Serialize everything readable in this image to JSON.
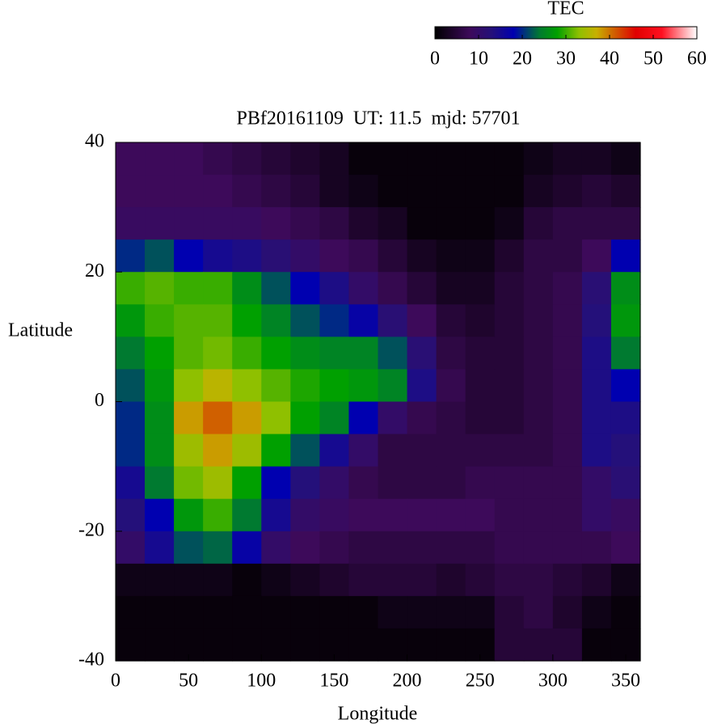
{
  "chart_data": {
    "type": "heatmap",
    "title": "PBf20161109  UT: 11.5  mjd: 57701",
    "x_label": "Longitude",
    "y_label": "Latitude",
    "colorbar_label": "TEC",
    "x": [
      10,
      30,
      50,
      70,
      90,
      110,
      130,
      150,
      170,
      190,
      210,
      230,
      250,
      270,
      290,
      310,
      330,
      350
    ],
    "y": [
      37.5,
      32.5,
      27.5,
      22.5,
      17.5,
      12.5,
      7.5,
      2.5,
      -2.5,
      -7.5,
      -12.5,
      -17.5,
      -22.5,
      -27.5,
      -32.5,
      -37.5
    ],
    "z": [
      [
        8,
        8,
        8,
        7,
        6,
        5,
        4,
        3,
        1,
        1,
        1,
        1,
        1,
        1,
        2,
        3,
        3,
        2
      ],
      [
        8,
        8,
        8,
        8,
        7,
        6,
        5,
        3,
        2,
        1,
        1,
        1,
        1,
        1,
        3,
        4,
        5,
        4
      ],
      [
        9,
        9,
        9,
        9,
        9,
        8,
        7,
        6,
        4,
        3,
        1,
        1,
        1,
        2,
        5,
        6,
        6,
        6
      ],
      [
        20,
        22,
        18,
        15,
        14,
        12,
        10,
        8,
        7,
        5,
        3,
        2,
        2,
        4,
        6,
        6,
        8,
        18
      ],
      [
        30,
        31,
        30,
        30,
        26,
        22,
        18,
        14,
        10,
        7,
        5,
        3,
        3,
        5,
        6,
        7,
        12,
        26
      ],
      [
        27,
        30,
        31,
        31,
        28,
        25,
        22,
        20,
        17,
        12,
        8,
        5,
        4,
        5,
        6,
        7,
        13,
        27
      ],
      [
        24,
        28,
        31,
        32,
        30,
        28,
        26,
        25,
        25,
        22,
        12,
        6,
        5,
        5,
        6,
        7,
        14,
        24
      ],
      [
        22,
        27,
        33,
        36,
        33,
        31,
        29,
        28,
        27,
        25,
        14,
        7,
        5,
        5,
        6,
        7,
        14,
        18
      ],
      [
        20,
        26,
        38,
        41,
        38,
        33,
        28,
        25,
        18,
        10,
        7,
        6,
        5,
        5,
        6,
        7,
        14,
        14
      ],
      [
        20,
        26,
        34,
        38,
        34,
        28,
        22,
        15,
        10,
        6,
        6,
        6,
        6,
        6,
        6,
        7,
        14,
        13
      ],
      [
        15,
        24,
        32,
        34,
        28,
        18,
        13,
        10,
        7,
        6,
        6,
        6,
        7,
        7,
        7,
        7,
        10,
        12
      ],
      [
        13,
        18,
        27,
        30,
        24,
        15,
        10,
        9,
        8,
        8,
        8,
        8,
        8,
        7,
        7,
        7,
        10,
        9
      ],
      [
        10,
        15,
        22,
        23,
        17,
        10,
        8,
        7,
        6,
        6,
        6,
        6,
        6,
        7,
        7,
        7,
        7,
        8
      ],
      [
        2,
        2,
        2,
        2,
        1,
        2,
        3,
        4,
        5,
        5,
        5,
        4,
        5,
        6,
        6,
        5,
        4,
        2
      ],
      [
        1,
        1,
        1,
        1,
        1,
        1,
        1,
        1,
        1,
        2,
        2,
        2,
        2,
        5,
        6,
        4,
        2,
        1
      ],
      [
        1,
        1,
        1,
        1,
        1,
        1,
        1,
        1,
        1,
        1,
        1,
        1,
        1,
        5,
        5,
        5,
        1,
        1
      ]
    ],
    "xlim": [
      0,
      360
    ],
    "ylim": [
      -40,
      40
    ],
    "xticks": [
      0,
      50,
      100,
      150,
      200,
      250,
      300,
      350
    ],
    "yticks": [
      -40,
      -20,
      0,
      20,
      40
    ],
    "clim": [
      0,
      60
    ],
    "cticks": [
      0,
      10,
      20,
      30,
      40,
      50,
      60
    ],
    "colormap": [
      [
        0,
        "#000000"
      ],
      [
        8,
        "#3d0a5a"
      ],
      [
        13,
        "#24107a"
      ],
      [
        18,
        "#0000b0"
      ],
      [
        24,
        "#007a30"
      ],
      [
        28,
        "#00a000"
      ],
      [
        33,
        "#8fc000"
      ],
      [
        37,
        "#c8b000"
      ],
      [
        41,
        "#d06000"
      ],
      [
        46,
        "#e00000"
      ],
      [
        52,
        "#ff1020"
      ],
      [
        60,
        "#ffffff"
      ]
    ]
  }
}
